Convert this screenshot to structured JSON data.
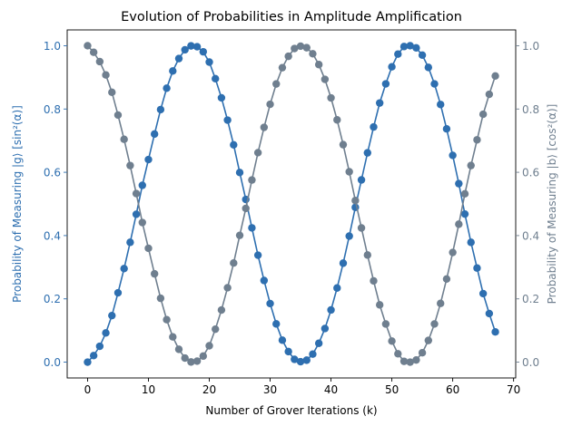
{
  "chart_data": {
    "type": "line",
    "title": "Evolution of Probabilities in Amplitude Amplification",
    "xlabel": "Number of Grover Iterations (k)",
    "ylabel_left": "Probability of Measuring |g⟩ [sin²(α)]",
    "ylabel_right": "Probability of Measuring |b⟩ [cos²(α)]",
    "xlim": [
      -3.35,
      70.35
    ],
    "ylim": [
      -0.05,
      1.05
    ],
    "x_ticks": [
      0,
      10,
      20,
      30,
      40,
      50,
      60,
      70
    ],
    "y_ticks": [
      0.0,
      0.2,
      0.4,
      0.6,
      0.8,
      1.0
    ],
    "y_tick_labels": [
      "0.0",
      "0.2",
      "0.4",
      "0.6",
      "0.8",
      "1.0"
    ],
    "grid": false,
    "legend": "none",
    "x": [
      0,
      1,
      2,
      3,
      4,
      5,
      6,
      7,
      8,
      9,
      10,
      11,
      12,
      13,
      14,
      15,
      16,
      17,
      18,
      19,
      20,
      21,
      22,
      23,
      24,
      25,
      26,
      27,
      28,
      29,
      30,
      31,
      32,
      33,
      34,
      35,
      36,
      37,
      38,
      39,
      40,
      41,
      42,
      43,
      44,
      45,
      46,
      47,
      48,
      49,
      50,
      51,
      52,
      53,
      54,
      55,
      56,
      57,
      58,
      59,
      60,
      61,
      62,
      63,
      64,
      65,
      66,
      67
    ],
    "series": [
      {
        "name": "",
        "color": "#2e6fb0",
        "axis": "left",
        "values": [
          0.0,
          0.0208,
          0.0502,
          0.0924,
          0.1472,
          0.2191,
          0.2958,
          0.3787,
          0.4673,
          0.5588,
          0.6402,
          0.7209,
          0.7982,
          0.8658,
          0.9202,
          0.9594,
          0.9872,
          0.9995,
          0.9968,
          0.9808,
          0.9483,
          0.8958,
          0.8354,
          0.7649,
          0.6868,
          0.5993,
          0.5142,
          0.4244,
          0.338,
          0.258,
          0.185,
          0.1208,
          0.0694,
          0.0334,
          0.0088,
          0.0014,
          0.0062,
          0.0253,
          0.0596,
          0.1062,
          0.1649,
          0.2343,
          0.3127,
          0.3983,
          0.4892,
          0.5759,
          0.6615,
          0.7432,
          0.819,
          0.8795,
          0.9334,
          0.9735,
          0.9974,
          1.0,
          0.9932,
          0.9704,
          0.9315,
          0.8793,
          0.8143,
          0.7372,
          0.6534,
          0.5641,
          0.468,
          0.3786,
          0.2974,
          0.2166,
          0.1535,
          0.0955
        ]
      },
      {
        "name": "",
        "color": "#6f7f8f",
        "axis": "right",
        "values": [
          1.0,
          0.9792,
          0.9498,
          0.9076,
          0.8528,
          0.7809,
          0.7042,
          0.6213,
          0.5327,
          0.4412,
          0.3598,
          0.2791,
          0.2018,
          0.1342,
          0.0798,
          0.0406,
          0.0128,
          0.0005,
          0.0032,
          0.0192,
          0.0517,
          0.1042,
          0.1646,
          0.2351,
          0.3132,
          0.4007,
          0.4858,
          0.5756,
          0.662,
          0.742,
          0.815,
          0.8792,
          0.9306,
          0.9666,
          0.9912,
          0.9986,
          0.9938,
          0.9747,
          0.9404,
          0.8938,
          0.8351,
          0.7657,
          0.6873,
          0.6017,
          0.5108,
          0.4241,
          0.3385,
          0.2568,
          0.181,
          0.1205,
          0.0666,
          0.0265,
          0.0026,
          0.0,
          0.0068,
          0.0296,
          0.0685,
          0.1207,
          0.1857,
          0.2628,
          0.3466,
          0.4359,
          0.532,
          0.6214,
          0.7026,
          0.7834,
          0.8465,
          0.9045
        ]
      }
    ]
  }
}
